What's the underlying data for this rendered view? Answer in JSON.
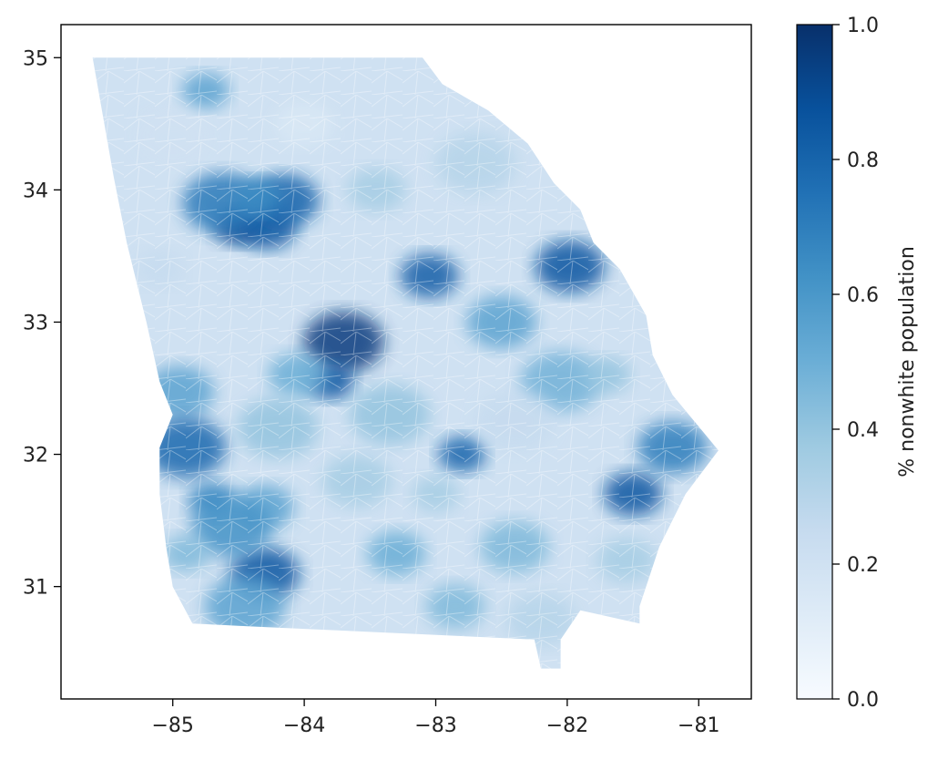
{
  "chart_data": {
    "type": "heatmap",
    "subtype": "choropleth",
    "region": "Georgia",
    "xticks": [
      -85,
      -84,
      -83,
      -82,
      -81
    ],
    "yticks": [
      31,
      32,
      33,
      34,
      35
    ],
    "xlim": [
      -85.85,
      -80.6
    ],
    "ylim": [
      30.15,
      35.25
    ],
    "colorbar": {
      "label": "% nonwhite population",
      "ticks": [
        0.0,
        0.2,
        0.4,
        0.6,
        0.8,
        1.0
      ],
      "tick_labels": [
        "0.0",
        "0.2",
        "0.4",
        "0.6",
        "0.8",
        "1.0"
      ],
      "colormap": "Blues",
      "range": [
        0,
        1
      ]
    },
    "state_outline": [
      [
        -85.61,
        35.0
      ],
      [
        -83.1,
        35.0
      ],
      [
        -82.95,
        34.8
      ],
      [
        -82.6,
        34.6
      ],
      [
        -82.3,
        34.35
      ],
      [
        -82.1,
        34.05
      ],
      [
        -81.9,
        33.85
      ],
      [
        -81.8,
        33.6
      ],
      [
        -81.6,
        33.4
      ],
      [
        -81.4,
        33.05
      ],
      [
        -81.35,
        32.75
      ],
      [
        -81.2,
        32.45
      ],
      [
        -80.85,
        32.03
      ],
      [
        -81.1,
        31.7
      ],
      [
        -81.3,
        31.3
      ],
      [
        -81.45,
        30.85
      ],
      [
        -81.45,
        30.72
      ],
      [
        -81.9,
        30.82
      ],
      [
        -82.05,
        30.6
      ],
      [
        -82.05,
        30.38
      ],
      [
        -82.2,
        30.38
      ],
      [
        -82.25,
        30.6
      ],
      [
        -84.0,
        30.68
      ],
      [
        -84.85,
        30.72
      ],
      [
        -85.0,
        31.0
      ],
      [
        -85.05,
        31.3
      ],
      [
        -85.1,
        31.7
      ],
      [
        -85.1,
        32.05
      ],
      [
        -85.0,
        32.3
      ],
      [
        -85.1,
        32.55
      ],
      [
        -85.2,
        33.0
      ],
      [
        -85.35,
        33.6
      ],
      [
        -85.45,
        34.1
      ],
      [
        -85.61,
        35.0
      ]
    ],
    "clusters": [
      {
        "lon": -84.5,
        "lat": 33.72,
        "value": 0.9
      },
      {
        "lon": -84.28,
        "lat": 33.72,
        "value": 0.85
      },
      {
        "lon": -84.15,
        "lat": 33.92,
        "value": 0.8
      },
      {
        "lon": -84.62,
        "lat": 33.9,
        "value": 0.72
      },
      {
        "lon": -84.35,
        "lat": 33.95,
        "value": 0.65
      },
      {
        "lon": -83.05,
        "lat": 33.35,
        "value": 0.82
      },
      {
        "lon": -81.98,
        "lat": 33.42,
        "value": 0.85
      },
      {
        "lon": -83.7,
        "lat": 32.85,
        "value": 0.95
      },
      {
        "lon": -83.8,
        "lat": 32.55,
        "value": 0.85
      },
      {
        "lon": -84.05,
        "lat": 32.6,
        "value": 0.5
      },
      {
        "lon": -84.95,
        "lat": 32.47,
        "value": 0.55
      },
      {
        "lon": -84.9,
        "lat": 32.05,
        "value": 0.78
      },
      {
        "lon": -84.7,
        "lat": 31.65,
        "value": 0.68
      },
      {
        "lon": -84.3,
        "lat": 31.6,
        "value": 0.55
      },
      {
        "lon": -84.3,
        "lat": 31.1,
        "value": 0.85
      },
      {
        "lon": -84.55,
        "lat": 31.45,
        "value": 0.62
      },
      {
        "lon": -82.8,
        "lat": 32.0,
        "value": 0.8
      },
      {
        "lon": -81.5,
        "lat": 31.7,
        "value": 0.85
      },
      {
        "lon": -81.2,
        "lat": 32.05,
        "value": 0.7
      },
      {
        "lon": -82.05,
        "lat": 32.55,
        "value": 0.48
      },
      {
        "lon": -84.75,
        "lat": 34.75,
        "value": 0.55
      },
      {
        "lon": -83.45,
        "lat": 34.0,
        "value": 0.35
      },
      {
        "lon": -82.5,
        "lat": 33.0,
        "value": 0.55
      },
      {
        "lon": -83.35,
        "lat": 32.3,
        "value": 0.4
      },
      {
        "lon": -84.9,
        "lat": 31.25,
        "value": 0.45
      },
      {
        "lon": -83.3,
        "lat": 31.25,
        "value": 0.5
      },
      {
        "lon": -82.4,
        "lat": 31.3,
        "value": 0.45
      },
      {
        "lon": -84.45,
        "lat": 30.85,
        "value": 0.55
      },
      {
        "lon": -83.0,
        "lat": 31.7,
        "value": 0.35
      },
      {
        "lon": -82.85,
        "lat": 30.85,
        "value": 0.45
      },
      {
        "lon": -82.2,
        "lat": 30.75,
        "value": 0.3
      },
      {
        "lon": -84.2,
        "lat": 32.2,
        "value": 0.4
      },
      {
        "lon": -85.1,
        "lat": 33.4,
        "value": 0.25
      },
      {
        "lon": -84.0,
        "lat": 34.5,
        "value": 0.15
      },
      {
        "lon": -85.0,
        "lat": 34.4,
        "value": 0.2
      },
      {
        "lon": -82.7,
        "lat": 34.2,
        "value": 0.3
      },
      {
        "lon": -81.7,
        "lat": 32.6,
        "value": 0.4
      },
      {
        "lon": -81.55,
        "lat": 31.2,
        "value": 0.35
      },
      {
        "lon": -83.6,
        "lat": 31.8,
        "value": 0.35
      },
      {
        "lon": -82.4,
        "lat": 32.25,
        "value": 0.25
      }
    ]
  }
}
